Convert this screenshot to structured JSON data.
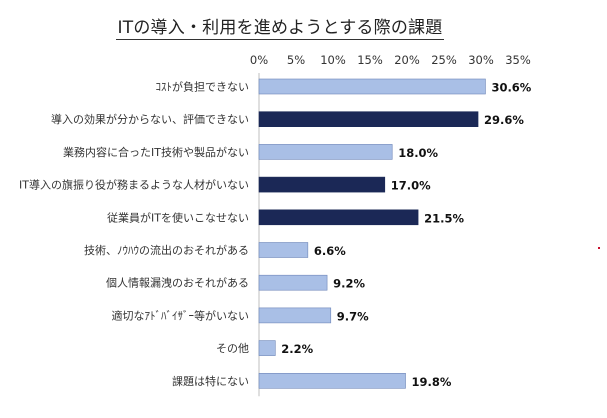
{
  "chart_data": {
    "type": "bar",
    "orientation": "horizontal",
    "title": "ITの導入・利用を進めようとする際の課題",
    "xlabel": "",
    "ylabel": "",
    "xlim": [
      0,
      35
    ],
    "ticks": [
      "0%",
      "5%",
      "10%",
      "15%",
      "20%",
      "25%",
      "30%",
      "35%"
    ],
    "tick_values": [
      0,
      5,
      10,
      15,
      20,
      25,
      30,
      35
    ],
    "grid": false,
    "categories": [
      "ｺｽﾄが負担できない",
      "導入の効果が分からない、評価できない",
      "業務内容に合ったIT技術や製品がない",
      "IT導入の旗振り役が務まるような人材がいない",
      "従業員がITを使いこなせない",
      "技術、ﾉｳﾊｳの流出のおそれがある",
      "個人情報漏洩のおそれがある",
      "適切なｱﾄﾞﾊﾞｲｻﾞｰ等がいない",
      "その他",
      "課題は特にない"
    ],
    "values": [
      30.6,
      29.6,
      18.0,
      17.0,
      21.5,
      6.6,
      9.2,
      9.7,
      2.2,
      19.8
    ],
    "value_labels": [
      "30.6%",
      "29.6%",
      "18.0%",
      "17.0%",
      "21.5%",
      "6.6%",
      "9.2%",
      "9.7%",
      "2.2%",
      "19.8%"
    ],
    "highlighted": [
      false,
      true,
      false,
      true,
      true,
      false,
      false,
      false,
      false,
      false
    ],
    "colors": {
      "normal": "#a9bfe6",
      "highlight": "#1b2856",
      "outline": "#6e86b8"
    }
  }
}
